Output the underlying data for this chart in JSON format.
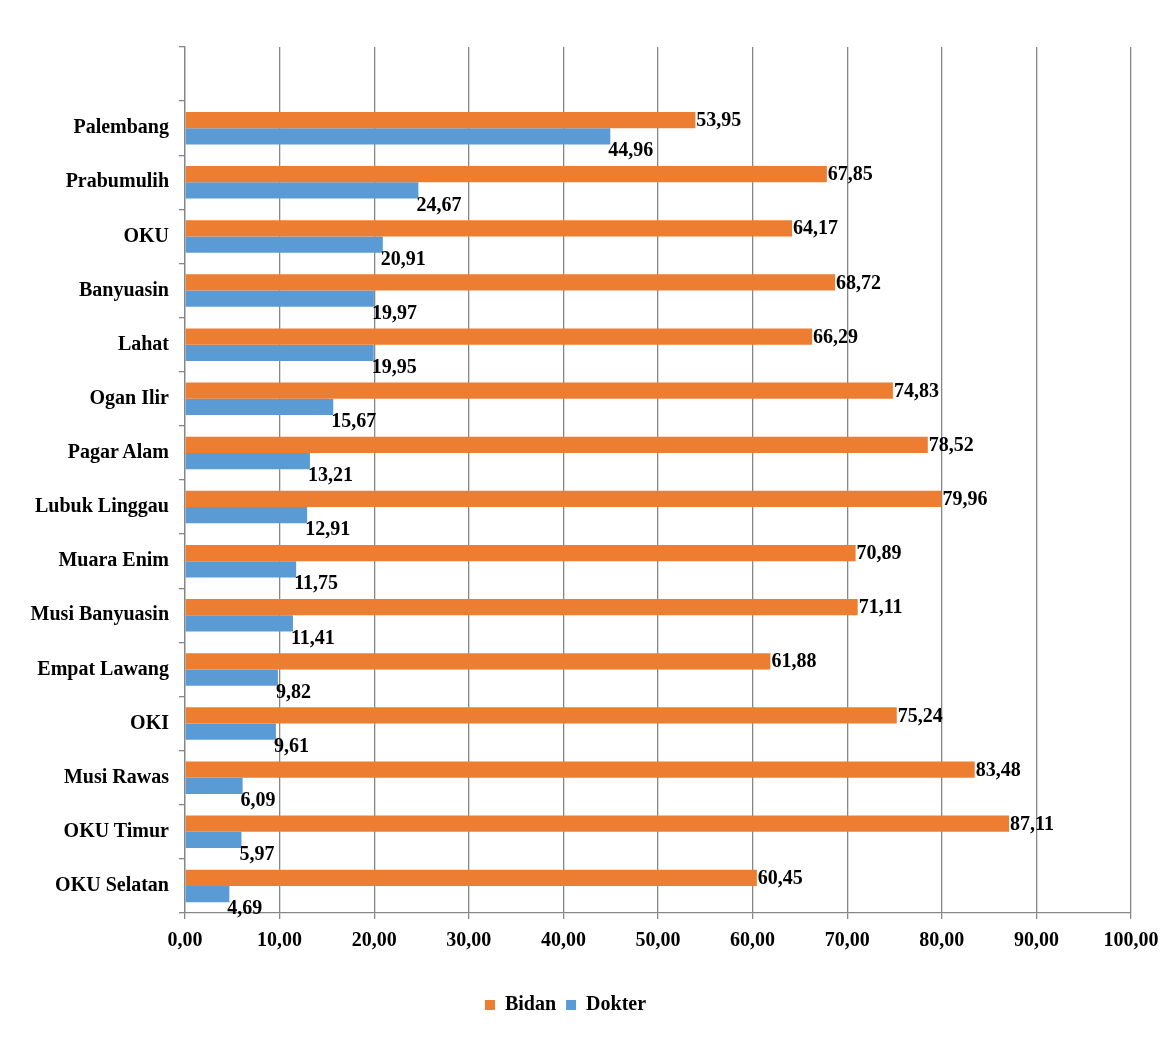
{
  "chart_data": {
    "type": "bar",
    "orientation": "horizontal",
    "categories": [
      null,
      "Palembang",
      "Prabumulih",
      "OKU",
      "Banyuasin",
      "Lahat",
      "Ogan Ilir",
      "Pagar Alam",
      "Lubuk Linggau",
      "Muara Enim",
      "Musi Banyuasin",
      "Empat Lawang",
      "OKI",
      "Musi Rawas",
      "OKU Timur",
      "OKU Selatan"
    ],
    "series": [
      {
        "name": "Bidan",
        "color": "#ed7d31",
        "values": [
          null,
          53.95,
          67.85,
          64.17,
          68.72,
          66.29,
          74.83,
          78.52,
          79.96,
          70.89,
          71.11,
          61.88,
          75.24,
          83.48,
          87.11,
          60.45
        ],
        "value_labels": [
          null,
          "53,95",
          "67,85",
          "64,17",
          "68,72",
          "66,29",
          "74,83",
          "78,52",
          "79,96",
          "70,89",
          "71,11",
          "61,88",
          "75,24",
          "83,48",
          "87,11",
          "60,45"
        ]
      },
      {
        "name": "Dokter",
        "color": "#5b9bd5",
        "values": [
          null,
          44.96,
          24.67,
          20.91,
          19.97,
          19.95,
          15.67,
          13.21,
          12.91,
          11.75,
          11.41,
          9.82,
          9.61,
          6.09,
          5.97,
          4.69
        ],
        "value_labels": [
          null,
          "44,96",
          "24,67",
          "20,91",
          "19,97",
          "19,95",
          "15,67",
          "13,21",
          "12,91",
          "11,75",
          "11,41",
          "9,82",
          "9,61",
          "6,09",
          "5,97",
          "4,69"
        ]
      }
    ],
    "xlim": [
      0,
      100
    ],
    "xticks": [
      {
        "value": 0,
        "label": "0,00"
      },
      {
        "value": 10,
        "label": "10,00"
      },
      {
        "value": 20,
        "label": "20,00"
      },
      {
        "value": 30,
        "label": "30,00"
      },
      {
        "value": 40,
        "label": "40,00"
      },
      {
        "value": 50,
        "label": "50,00"
      },
      {
        "value": 60,
        "label": "60,00"
      },
      {
        "value": 70,
        "label": "70,00"
      },
      {
        "value": 80,
        "label": "80,00"
      },
      {
        "value": 90,
        "label": "90,00"
      },
      {
        "value": 100,
        "label": "100,00"
      }
    ],
    "grid": "x",
    "legend": "bottom"
  }
}
